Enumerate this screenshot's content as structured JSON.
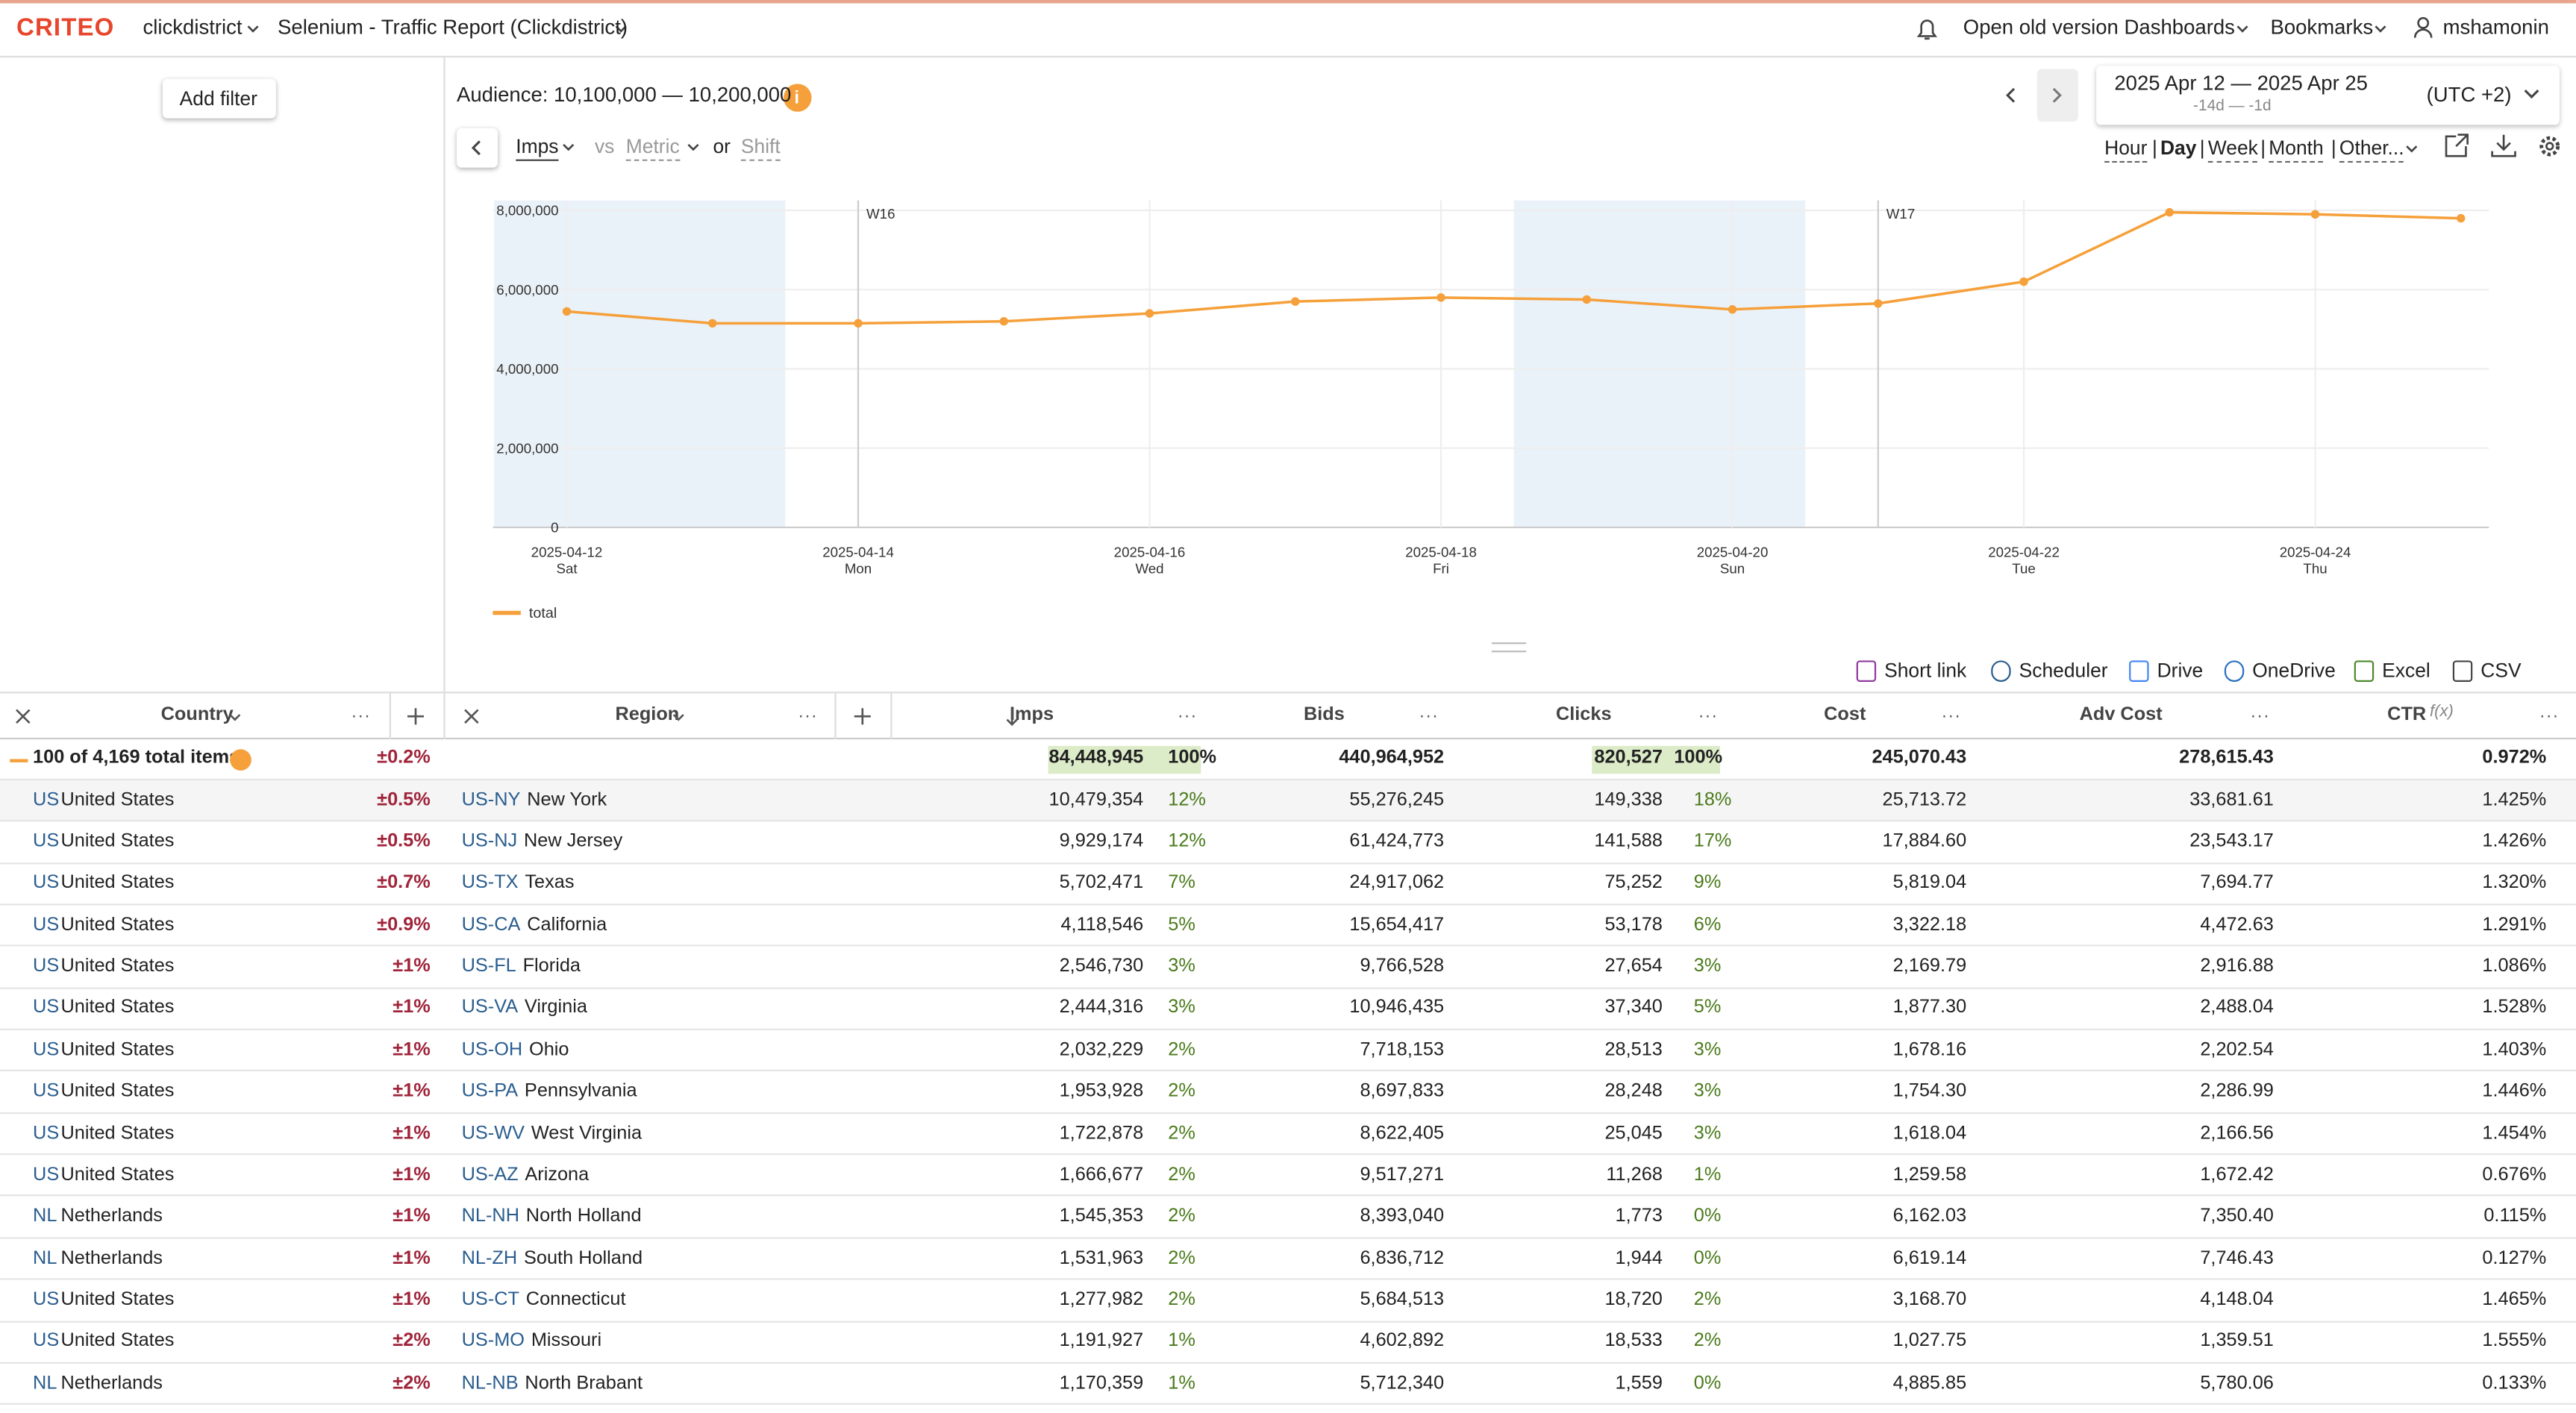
{
  "header": {
    "logo": "CRITEO",
    "account": "clickdistrict",
    "report": "Selenium - Traffic Report (Clickdistrict)",
    "links": [
      "Open old version",
      "Dashboards",
      "Bookmarks"
    ],
    "user": "mshamonin"
  },
  "sidebar": {
    "add_filter": "Add filter"
  },
  "toolbar": {
    "audience": "Audience: 10,100,000 — 10,200,000",
    "date_range": "2025 Apr 12 — 2025 Apr 25",
    "relative_range": "-14d — -1d",
    "timezone": "(UTC +2)",
    "metric": "Imps",
    "vs": "vs",
    "compare_metric": "Metric",
    "or": "or",
    "shift": "Shift",
    "granularity": [
      "Hour",
      "Day",
      "Week",
      "Month",
      "Other..."
    ],
    "separator": "|"
  },
  "chart_data": {
    "type": "line",
    "x": [
      "2025-04-12",
      "2025-04-13",
      "2025-04-14",
      "2025-04-15",
      "2025-04-16",
      "2025-04-17",
      "2025-04-18",
      "2025-04-19",
      "2025-04-20",
      "2025-04-21",
      "2025-04-22",
      "2025-04-23",
      "2025-04-24",
      "2025-04-25"
    ],
    "series": [
      {
        "name": "total",
        "color": "#f5a03a",
        "values": [
          5450000,
          5150000,
          5150000,
          5200000,
          5400000,
          5700000,
          5800000,
          5750000,
          5500000,
          5650000,
          6200000,
          7950000,
          7900000,
          7800000
        ]
      }
    ],
    "ylim": [
      0,
      8250000
    ],
    "yticks": [
      0,
      {
        "value": 2000000,
        "label": "2,000,000"
      },
      {
        "value": 4000000,
        "label": "4,000,000"
      },
      {
        "value": 6000000,
        "label": "6,000,000"
      },
      {
        "value": 8000000,
        "label": "8,000,000"
      }
    ],
    "xticks": [
      "2025-04-12",
      "2025-04-14",
      "2025-04-16",
      "2025-04-18",
      "2025-04-20",
      "2025-04-22",
      "2025-04-24"
    ],
    "xtick_weekdays": [
      "Sat",
      "Mon",
      "Wed",
      "Fri",
      "Sun",
      "Tue",
      "Thu"
    ],
    "week_markers": [
      {
        "date": "2025-04-14",
        "label": "W16"
      },
      {
        "date": "2025-04-21",
        "label": "W17"
      }
    ],
    "weekend_shading": [
      [
        "2025-04-12",
        "2025-04-13"
      ],
      [
        "2025-04-19",
        "2025-04-20"
      ]
    ],
    "grid": true
  },
  "table_toolbar": {
    "actions": [
      "Short link",
      "Scheduler",
      "Drive",
      "OneDrive",
      "Excel",
      "CSV"
    ]
  },
  "table": {
    "columns": [
      "Country",
      "Region",
      "Imps",
      "Bids",
      "Clicks",
      "Cost",
      "Adv Cost",
      "CTR"
    ],
    "formula_mark": "f(x)",
    "summary": {
      "items": "100 of 4,169 total items",
      "error": "±0.2%",
      "imps": "84,448,945",
      "imps_pct": "100%",
      "bids": "440,964,952",
      "clicks": "820,527",
      "clicks_pct": "100%",
      "cost": "245,070.43",
      "adv_cost": "278,615.43",
      "ctr": "0.972%"
    },
    "rows": [
      [
        "US",
        "United States",
        "±0.5%",
        "US-NY",
        "New York",
        "10,479,354",
        "12%",
        "55,276,245",
        "149,338",
        "18%",
        "25,713.72",
        "33,681.61",
        "1.425%"
      ],
      [
        "US",
        "United States",
        "±0.5%",
        "US-NJ",
        "New Jersey",
        "9,929,174",
        "12%",
        "61,424,773",
        "141,588",
        "17%",
        "17,884.60",
        "23,543.17",
        "1.426%"
      ],
      [
        "US",
        "United States",
        "±0.7%",
        "US-TX",
        "Texas",
        "5,702,471",
        "7%",
        "24,917,062",
        "75,252",
        "9%",
        "5,819.04",
        "7,694.77",
        "1.320%"
      ],
      [
        "US",
        "United States",
        "±0.9%",
        "US-CA",
        "California",
        "4,118,546",
        "5%",
        "15,654,417",
        "53,178",
        "6%",
        "3,322.18",
        "4,472.63",
        "1.291%"
      ],
      [
        "US",
        "United States",
        "±1%",
        "US-FL",
        "Florida",
        "2,546,730",
        "3%",
        "9,766,528",
        "27,654",
        "3%",
        "2,169.79",
        "2,916.88",
        "1.086%"
      ],
      [
        "US",
        "United States",
        "±1%",
        "US-VA",
        "Virginia",
        "2,444,316",
        "3%",
        "10,946,435",
        "37,340",
        "5%",
        "1,877.30",
        "2,488.04",
        "1.528%"
      ],
      [
        "US",
        "United States",
        "±1%",
        "US-OH",
        "Ohio",
        "2,032,229",
        "2%",
        "7,718,153",
        "28,513",
        "3%",
        "1,678.16",
        "2,202.54",
        "1.403%"
      ],
      [
        "US",
        "United States",
        "±1%",
        "US-PA",
        "Pennsylvania",
        "1,953,928",
        "2%",
        "8,697,833",
        "28,248",
        "3%",
        "1,754.30",
        "2,286.99",
        "1.446%"
      ],
      [
        "US",
        "United States",
        "±1%",
        "US-WV",
        "West Virginia",
        "1,722,878",
        "2%",
        "8,622,405",
        "25,045",
        "3%",
        "1,618.04",
        "2,166.56",
        "1.454%"
      ],
      [
        "US",
        "United States",
        "±1%",
        "US-AZ",
        "Arizona",
        "1,666,677",
        "2%",
        "9,517,271",
        "11,268",
        "1%",
        "1,259.58",
        "1,672.42",
        "0.676%"
      ],
      [
        "NL",
        "Netherlands",
        "±1%",
        "NL-NH",
        "North Holland",
        "1,545,353",
        "2%",
        "8,393,040",
        "1,773",
        "0%",
        "6,162.03",
        "7,350.40",
        "0.115%"
      ],
      [
        "NL",
        "Netherlands",
        "±1%",
        "NL-ZH",
        "South Holland",
        "1,531,963",
        "2%",
        "6,836,712",
        "1,944",
        "0%",
        "6,619.14",
        "7,746.43",
        "0.127%"
      ],
      [
        "US",
        "United States",
        "±1%",
        "US-CT",
        "Connecticut",
        "1,277,982",
        "2%",
        "5,684,513",
        "18,720",
        "2%",
        "3,168.70",
        "4,148.04",
        "1.465%"
      ],
      [
        "US",
        "United States",
        "±2%",
        "US-MO",
        "Missouri",
        "1,191,927",
        "1%",
        "4,602,892",
        "18,533",
        "2%",
        "1,027.75",
        "1,359.51",
        "1.555%"
      ],
      [
        "NL",
        "Netherlands",
        "±2%",
        "NL-NB",
        "North Brabant",
        "1,170,359",
        "1%",
        "5,712,340",
        "1,559",
        "0%",
        "4,885.85",
        "5,780.06",
        "0.133%"
      ]
    ]
  }
}
